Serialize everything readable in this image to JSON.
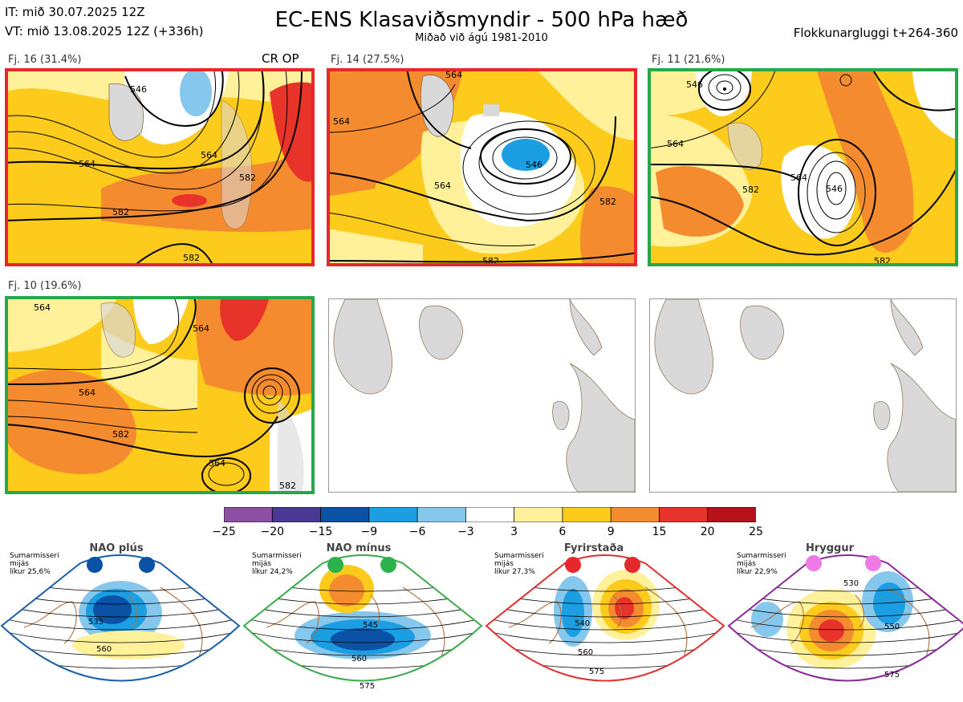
{
  "header": {
    "it_line": "IT: mið 30.07.2025 12Z",
    "vt_line": "VT: mið 13.08.2025 12Z  (+336h)",
    "title": "EC-ENS Klasaviðsmyndir - 500 hPa hæð",
    "subtitle": "Miðað við ágú 1981-2010",
    "window": "Flokkunargluggi t+264-360"
  },
  "colors": {
    "land": "#d9d9d9",
    "coast": "#8b6a4a",
    "frame_red": "#e8262b",
    "frame_green": "#24a84a",
    "regime_blue": "#1a5fa8",
    "regime_green": "#3aaa4a",
    "regime_red": "#e03030",
    "regime_purple": "#8a2a9a",
    "dot_blue": "#0a52a5",
    "dot_green": "#2bb24c",
    "dot_red": "#e5282c",
    "dot_pink": "#ee7ae8"
  },
  "chart_data": {
    "type": "heatmap",
    "panels": [
      {
        "label": "Fj. 16 (31.4%)",
        "extra_label": "CR OP",
        "frame": "red",
        "contour_labels": [
          "564",
          "564",
          "582",
          "582",
          "582",
          "546"
        ]
      },
      {
        "label": "Fj. 14 (27.5%)",
        "frame": "red",
        "contour_labels": [
          "546",
          "564",
          "564",
          "582",
          "582",
          "564"
        ]
      },
      {
        "label": "Fj. 11 (21.6%)",
        "frame": "green",
        "contour_labels": [
          "564",
          "564",
          "546",
          "582",
          "546",
          "582"
        ]
      },
      {
        "label": "Fj. 10 (19.6%)",
        "frame": "green",
        "contour_labels": [
          "564",
          "564",
          "582",
          "564",
          "564",
          "582"
        ]
      },
      {
        "label": "",
        "frame": "none",
        "contour_labels": []
      },
      {
        "label": "",
        "frame": "none",
        "contour_labels": []
      }
    ],
    "colorbar": {
      "ticks": [
        "−25",
        "−20",
        "−15",
        "−9",
        "−6",
        "−3",
        "3",
        "6",
        "9",
        "15",
        "20",
        "25"
      ],
      "colors": [
        "#8c4fa3",
        "#4a3896",
        "#0a52a5",
        "#1b9ee2",
        "#86c7ee",
        "#ffffff",
        "#fff19a",
        "#fdcb1b",
        "#f58b2f",
        "#e8332a",
        "#b5121b"
      ]
    },
    "regimes": [
      {
        "name": "NAO plús",
        "note": [
          "Sumarmisseri",
          "mijás",
          "líkur 25,6%"
        ],
        "frame": "regime_blue",
        "dot": "dot_blue",
        "contour_labels": [
          "535",
          "560"
        ]
      },
      {
        "name": "NAO mínus",
        "note": [
          "Sumarmisseri",
          "mijás",
          "líkur 24,2%"
        ],
        "frame": "regime_green",
        "dot": "dot_green",
        "contour_labels": [
          "545",
          "560",
          "575"
        ]
      },
      {
        "name": "Fyrirstaða",
        "note": [
          "Sumarmisseri",
          "mijás",
          "líkur 27,3%"
        ],
        "frame": "regime_red",
        "dot": "dot_red",
        "contour_labels": [
          "540",
          "560",
          "575"
        ]
      },
      {
        "name": "Hryggur",
        "note": [
          "Sumarmisseri",
          "mijás",
          "líkur 22,9%"
        ],
        "frame": "regime_purple",
        "dot": "dot_pink",
        "contour_labels": [
          "530",
          "550",
          "575"
        ]
      }
    ]
  }
}
